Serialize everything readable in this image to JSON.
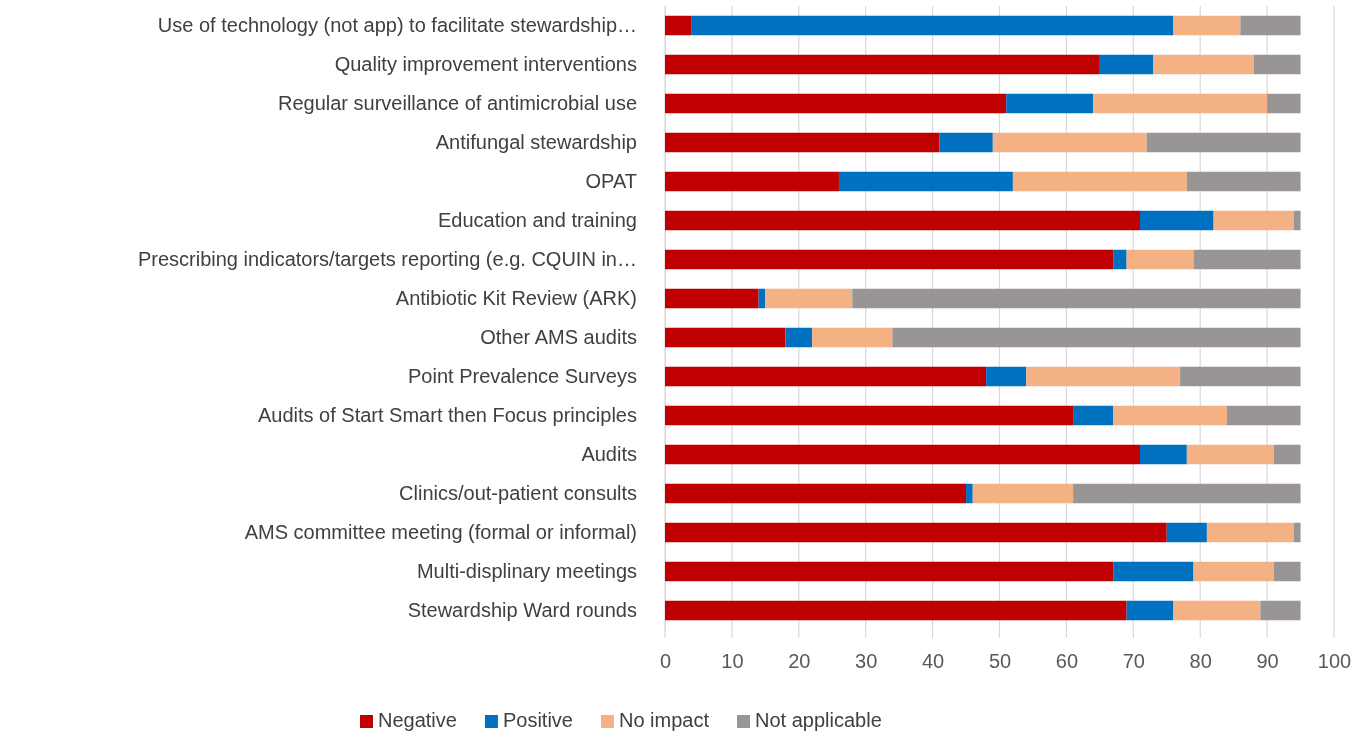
{
  "chart_data": {
    "type": "bar",
    "orientation": "horizontal",
    "stacked": true,
    "categories": [
      "Use of technology (not app) to facilitate stewardship…",
      "Quality improvement interventions",
      "Regular surveillance of antimicrobial use",
      "Antifungal stewardship",
      "OPAT",
      "Education and training",
      "Prescribing indicators/targets reporting (e.g. CQUIN in…",
      "Antibiotic Kit Review (ARK)",
      "Other AMS audits",
      "Point Prevalence Surveys",
      "Audits of Start Smart then Focus principles",
      "Audits",
      "Clinics/out-patient consults",
      "AMS committee meeting (formal or informal)",
      "Multi-displinary meetings",
      "Stewardship Ward rounds"
    ],
    "series": [
      {
        "name": "Negative",
        "color": "#c00000",
        "values": [
          4,
          65,
          51,
          41,
          26,
          71,
          67,
          14,
          18,
          48,
          61,
          71,
          45,
          75,
          67,
          69
        ]
      },
      {
        "name": "Positive",
        "color": "#0070c0",
        "values": [
          72,
          8,
          13,
          8,
          26,
          11,
          2,
          1,
          4,
          6,
          6,
          7,
          1,
          6,
          12,
          7
        ]
      },
      {
        "name": "No impact",
        "color": "#f4b183",
        "values": [
          10,
          15,
          26,
          23,
          26,
          12,
          10,
          13,
          12,
          23,
          17,
          13,
          15,
          13,
          12,
          13
        ]
      },
      {
        "name": "Not applicable",
        "color": "#999595",
        "values": [
          9,
          7,
          5,
          23,
          17,
          1,
          16,
          67,
          61,
          18,
          11,
          4,
          34,
          1,
          4,
          6
        ]
      }
    ],
    "xlim": [
      0,
      100
    ],
    "xticks": [
      0,
      10,
      20,
      30,
      40,
      50,
      60,
      70,
      80,
      90,
      100
    ],
    "grid": "x",
    "legend": "bottom"
  }
}
